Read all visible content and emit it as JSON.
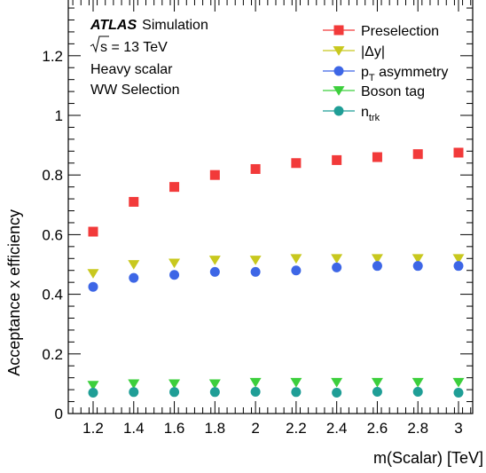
{
  "chart_data": {
    "type": "scatter",
    "xlabel": "m(Scalar) [TeV]",
    "ylabel": "Acceptance x efficiency",
    "xlim": [
      1.1,
      3.1
    ],
    "ylim": [
      0,
      1.4
    ],
    "x_ticks": [
      "1.2",
      "1.4",
      "1.6",
      "1.8",
      "2",
      "2.2",
      "2.4",
      "2.6",
      "2.8",
      "3"
    ],
    "y_ticks": [
      "0",
      "0.2",
      "0.4",
      "0.6",
      "0.8",
      "1",
      "1.2"
    ],
    "x": [
      1.2,
      1.4,
      1.6,
      1.8,
      2.0,
      2.2,
      2.4,
      2.6,
      2.8,
      3.0
    ],
    "series": [
      {
        "name": "Preselection",
        "marker": "square",
        "color": "#f23a3a",
        "values": [
          0.61,
          0.71,
          0.76,
          0.8,
          0.82,
          0.84,
          0.85,
          0.86,
          0.87,
          0.875
        ]
      },
      {
        "name": "|Δy|",
        "marker": "triangle-down",
        "color": "#c8c81e",
        "values": [
          0.47,
          0.5,
          0.505,
          0.515,
          0.515,
          0.52,
          0.52,
          0.52,
          0.52,
          0.52
        ]
      },
      {
        "name": "p_T asymmetry",
        "marker": "circle",
        "color": "#3d66e6",
        "values": [
          0.425,
          0.455,
          0.465,
          0.475,
          0.475,
          0.48,
          0.49,
          0.495,
          0.495,
          0.495
        ]
      },
      {
        "name": "Boson tag",
        "marker": "triangle-down",
        "color": "#3ccf3c",
        "values": [
          0.095,
          0.1,
          0.1,
          0.1,
          0.105,
          0.105,
          0.105,
          0.105,
          0.105,
          0.105
        ]
      },
      {
        "name": "n_trk",
        "marker": "circle",
        "color": "#1f9e96",
        "values": [
          0.07,
          0.072,
          0.072,
          0.072,
          0.073,
          0.072,
          0.07,
          0.073,
          0.073,
          0.07
        ]
      }
    ],
    "legend_position": "top-right",
    "grid": false
  },
  "info": {
    "experiment": "ATLAS",
    "label": "Simulation",
    "energy_prefix": "s",
    "energy_suffix": " = 13 TeV",
    "line3": "Heavy scalar",
    "line4": "WW Selection"
  },
  "legend_display": {
    "entries": [
      {
        "main": "Preselection",
        "sub": ""
      },
      {
        "main": "|Δy|",
        "sub": ""
      },
      {
        "main": "p",
        "sub": "T",
        "tail": " asymmetry"
      },
      {
        "main": "Boson tag",
        "sub": ""
      },
      {
        "main": "n",
        "sub": "trk"
      }
    ]
  }
}
